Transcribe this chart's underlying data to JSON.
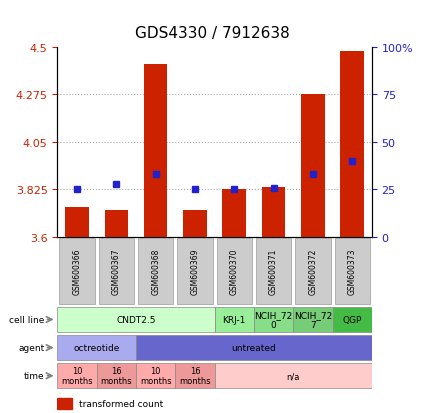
{
  "title": "GDS4330 / 7912638",
  "samples": [
    "GSM600366",
    "GSM600367",
    "GSM600368",
    "GSM600369",
    "GSM600370",
    "GSM600371",
    "GSM600372",
    "GSM600373"
  ],
  "transformed_count": [
    3.74,
    3.73,
    4.42,
    3.73,
    3.825,
    3.835,
    4.275,
    4.48
  ],
  "percentile_rank": [
    25,
    28,
    33,
    25,
    25,
    26,
    33,
    40
  ],
  "ylim": [
    3.6,
    4.5
  ],
  "yticks": [
    3.6,
    3.825,
    4.05,
    4.275,
    4.5
  ],
  "right_yticks": [
    0,
    25,
    50,
    75,
    100
  ],
  "right_ylim": [
    0,
    100
  ],
  "bar_bottom": 3.6,
  "bar_color": "#cc2200",
  "dot_color": "#2222cc",
  "grid_color": "#aaaaaa",
  "cell_line_groups": [
    {
      "label": "CNDT2.5",
      "cols": [
        0,
        1,
        2,
        3
      ],
      "color": "#ccffcc"
    },
    {
      "label": "KRJ-1",
      "cols": [
        4
      ],
      "color": "#99ee99"
    },
    {
      "label": "NCIH_72\n0",
      "cols": [
        5
      ],
      "color": "#88dd88"
    },
    {
      "label": "NCIH_72\n7",
      "cols": [
        6
      ],
      "color": "#77cc77"
    },
    {
      "label": "QGP",
      "cols": [
        7
      ],
      "color": "#44bb44"
    }
  ],
  "agent_groups": [
    {
      "label": "octreotide",
      "cols": [
        0,
        1
      ],
      "color": "#aaaaee"
    },
    {
      "label": "untreated",
      "cols": [
        2,
        3,
        4,
        5,
        6,
        7
      ],
      "color": "#6666cc"
    }
  ],
  "time_groups": [
    {
      "label": "10\nmonths",
      "cols": [
        0
      ],
      "color": "#ffaaaa"
    },
    {
      "label": "16\nmonths",
      "cols": [
        1
      ],
      "color": "#ee9999"
    },
    {
      "label": "10\nmonths",
      "cols": [
        2
      ],
      "color": "#ffaaaa"
    },
    {
      "label": "16\nmonths",
      "cols": [
        3
      ],
      "color": "#ee9999"
    },
    {
      "label": "n/a",
      "cols": [
        4,
        5,
        6,
        7
      ],
      "color": "#ffcccc"
    }
  ],
  "left_axis_color": "#cc2200",
  "right_axis_color": "#2222cc",
  "bg_color": "#ffffff",
  "sample_box_color": "#cccccc",
  "sample_box_edge": "#999999"
}
